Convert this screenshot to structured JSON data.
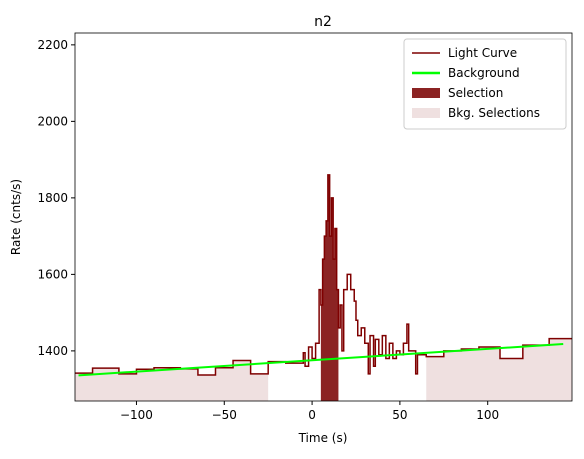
{
  "chart_data": {
    "type": "step",
    "title": "n2",
    "x_label": "Time (s)",
    "y_label": "Rate (cnts/s)",
    "xlim": [
      -135,
      148
    ],
    "ylim": [
      1269,
      2231
    ],
    "xticks": [
      {
        "value": -100,
        "label": "−100"
      },
      {
        "value": -50,
        "label": "−50"
      },
      0,
      50,
      100
    ],
    "yticks": [
      1400,
      1600,
      1800,
      2000,
      2200
    ],
    "legend": "upper right",
    "series": [
      {
        "name": "Light Curve",
        "color": "#7f0000",
        "x": [
          -135,
          -125,
          -110,
          -100,
          -90,
          -75,
          -65,
          -55,
          -45,
          -35,
          -25,
          -15,
          -5,
          -4,
          -2,
          0,
          2,
          4,
          5,
          6,
          7,
          8,
          9,
          10,
          11,
          12,
          13,
          14,
          15,
          16,
          17,
          18,
          20,
          22,
          24,
          25,
          26,
          28,
          30,
          32,
          33,
          35,
          36,
          38,
          40,
          42,
          44,
          46,
          48,
          50,
          52,
          54,
          55,
          57,
          59,
          60,
          65,
          75,
          85,
          95,
          107,
          120,
          135
        ],
        "values": [
          1342,
          1355,
          1340,
          1352,
          1356,
          1353,
          1337,
          1356,
          1375,
          1340,
          1372,
          1368,
          1395,
          1360,
          1410,
          1380,
          1420,
          1560,
          1520,
          1640,
          1700,
          1740,
          1860,
          1700,
          1800,
          1640,
          1720,
          1560,
          1460,
          1520,
          1400,
          1560,
          1600,
          1560,
          1530,
          1480,
          1440,
          1460,
          1420,
          1340,
          1440,
          1360,
          1430,
          1390,
          1440,
          1380,
          1420,
          1380,
          1400,
          1390,
          1420,
          1470,
          1400,
          1400,
          1340,
          1390,
          1385,
          1400,
          1405,
          1410,
          1380,
          1415,
          1432
        ]
      },
      {
        "name": "Background",
        "color": "#00ff00",
        "x": [
          -133,
          143
        ],
        "values": [
          1336,
          1418
        ]
      }
    ],
    "regions": [
      {
        "name": "Selection",
        "color": "#8b2323",
        "ranges": [
          [
            5,
            15
          ]
        ]
      },
      {
        "name": "Bkg. Selections",
        "color": "#efe0e0",
        "ranges": [
          [
            -135,
            -25
          ],
          [
            65,
            148
          ]
        ]
      }
    ]
  }
}
